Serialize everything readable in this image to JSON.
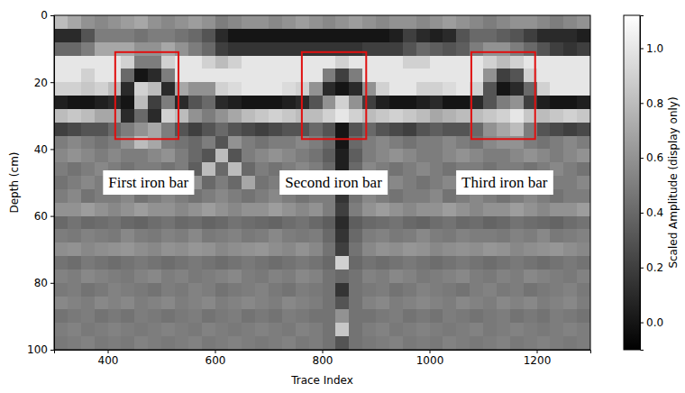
{
  "chart_data": {
    "type": "heatmap",
    "x_label": "Trace Index",
    "y_label": "Depth (cm)",
    "xlim": [
      300,
      1300
    ],
    "xticks": [
      400,
      600,
      800,
      1000,
      1200
    ],
    "ylim": [
      0,
      100
    ],
    "yticks": [
      0,
      20,
      40,
      60,
      80,
      100
    ],
    "grid": false,
    "x": [
      312.5,
      337.5,
      362.5,
      387.5,
      412.5,
      437.5,
      462.5,
      487.5,
      512.5,
      537.5,
      562.5,
      587.5,
      612.5,
      637.5,
      662.5,
      687.5,
      712.5,
      737.5,
      762.5,
      787.5,
      812.5,
      837.5,
      862.5,
      887.5,
      912.5,
      937.5,
      962.5,
      987.5,
      1012.5,
      1037.5,
      1062.5,
      1087.5,
      1112.5,
      1137.5,
      1162.5,
      1187.5,
      1212.5,
      1237.5,
      1262.5,
      1287.5
    ],
    "y": [
      2,
      6,
      10,
      14,
      18,
      22,
      26,
      30,
      34,
      38,
      42,
      46,
      50,
      54,
      58,
      62,
      66,
      70,
      74,
      78,
      82,
      86,
      90,
      94,
      98
    ],
    "cells": [
      [
        0.8,
        0.7,
        0.6,
        0.55,
        0.6,
        0.65,
        0.7,
        0.6,
        0.55,
        0.6,
        0.65,
        0.6,
        0.5,
        0.55,
        0.6,
        0.6,
        0.55,
        0.6,
        0.65,
        0.6,
        0.55,
        0.6,
        0.65,
        0.6,
        0.55,
        0.6,
        0.6,
        0.55,
        0.6,
        0.65,
        0.6,
        0.55,
        0.5,
        0.55,
        0.6,
        0.6,
        0.55,
        0.5,
        0.55,
        0.6
      ],
      [
        0.1,
        0.1,
        0.3,
        0.5,
        0.5,
        0.5,
        0.45,
        0.5,
        0.5,
        0.45,
        0.4,
        0.3,
        0.1,
        0,
        0,
        0,
        0,
        0,
        0,
        0,
        0,
        0,
        0,
        0,
        0,
        0.05,
        0.2,
        0.1,
        0.05,
        0.1,
        0.3,
        0.4,
        0.4,
        0.35,
        0.3,
        0.2,
        0.1,
        0.1,
        0.1,
        0.05
      ],
      [
        0.4,
        0.4,
        0.5,
        0.7,
        0.7,
        0.7,
        0.6,
        0.6,
        0.7,
        0.6,
        0.5,
        0.4,
        0.2,
        0.15,
        0.15,
        0.15,
        0.15,
        0.15,
        0.15,
        0.15,
        0.15,
        0.15,
        0.15,
        0.2,
        0.2,
        0.2,
        0.3,
        0.4,
        0.35,
        0.3,
        0.35,
        0.5,
        0.6,
        0.6,
        0.5,
        0.4,
        0.3,
        0.2,
        0.15,
        0.2
      ],
      [
        1,
        1,
        1,
        1,
        1,
        0.9,
        0.5,
        0.5,
        0.9,
        1,
        1,
        0.9,
        0.8,
        0.9,
        1,
        1,
        1,
        1,
        1,
        1,
        1,
        0.9,
        1,
        1,
        1,
        1,
        0.9,
        0.9,
        1,
        1,
        1,
        1,
        0.9,
        0.8,
        0.9,
        1,
        1,
        1,
        1,
        1
      ],
      [
        1,
        1,
        0.9,
        1,
        1,
        0.4,
        0,
        0.1,
        0.5,
        1,
        1,
        1,
        1,
        1,
        1,
        1,
        1,
        1,
        1,
        1,
        0.5,
        0.2,
        0.5,
        1,
        1,
        1,
        1,
        1,
        1,
        1,
        1,
        1,
        0.6,
        0.2,
        0.3,
        0.9,
        1,
        1,
        1,
        1
      ],
      [
        0.9,
        0.9,
        0.85,
        0.9,
        0.8,
        0.1,
        0.9,
        0.8,
        0.1,
        0.7,
        0.6,
        0.6,
        0.9,
        0.95,
        1,
        1,
        1,
        0.95,
        0.9,
        0.6,
        0.1,
        0,
        0.1,
        0.6,
        0.9,
        1,
        1,
        0.9,
        0.9,
        0.95,
        1,
        0.9,
        0.3,
        0,
        0.1,
        0.4,
        0.9,
        1,
        1,
        1
      ],
      [
        0.05,
        0,
        0,
        0.05,
        0.1,
        0,
        0.8,
        0.2,
        0.5,
        0.1,
        0.3,
        0.4,
        0.1,
        0.05,
        0,
        0,
        0,
        0.05,
        0.1,
        0.3,
        0.6,
        0.9,
        0.6,
        0.2,
        0.05,
        0,
        0,
        0.05,
        0.1,
        0,
        0,
        0.1,
        0.3,
        0.5,
        0.6,
        0.2,
        0.05,
        0,
        0,
        0.05
      ],
      [
        0.8,
        0.85,
        0.8,
        0.7,
        0.7,
        0.1,
        0.4,
        0.1,
        0.9,
        0.8,
        0.6,
        0.5,
        0.6,
        0.7,
        0.8,
        0.85,
        0.9,
        0.85,
        0.8,
        0.8,
        0.9,
        1,
        0.9,
        0.8,
        0.85,
        0.9,
        0.85,
        0.8,
        0.7,
        0.75,
        0.8,
        0.8,
        0.85,
        0.9,
        1,
        0.85,
        0.8,
        0.85,
        0.9,
        0.85
      ],
      [
        0.2,
        0.25,
        0.3,
        0.3,
        0.4,
        0.5,
        0.6,
        0.7,
        0.5,
        0.3,
        0.2,
        0.3,
        0.4,
        0.3,
        0.25,
        0.2,
        0.25,
        0.3,
        0.3,
        0.4,
        0.3,
        0,
        0.3,
        0.4,
        0.3,
        0.25,
        0.2,
        0.3,
        0.35,
        0.3,
        0.3,
        0.4,
        0.6,
        0.7,
        0.8,
        0.5,
        0.3,
        0.25,
        0.2,
        0.25
      ],
      [
        0.5,
        0.55,
        0.5,
        0.45,
        0.5,
        0.6,
        0.8,
        0.7,
        0.5,
        0.45,
        0.4,
        0.5,
        0.3,
        0.6,
        0.5,
        0.45,
        0.5,
        0.5,
        0.55,
        0.5,
        0.4,
        0,
        0.4,
        0.5,
        0.55,
        0.5,
        0.45,
        0.5,
        0.5,
        0.55,
        0.5,
        0.45,
        0.55,
        0.6,
        0.6,
        0.5,
        0.45,
        0.5,
        0.55,
        0.5
      ],
      [
        0.55,
        0.6,
        0.55,
        0.5,
        0.55,
        0.5,
        0.5,
        0.55,
        0.6,
        0.5,
        0.4,
        0.3,
        0.8,
        0.3,
        0.5,
        0.55,
        0.6,
        0.55,
        0.5,
        0.45,
        0.35,
        0.05,
        0.35,
        0.5,
        0.55,
        0.6,
        0.55,
        0.5,
        0.5,
        0.55,
        0.6,
        0.55,
        0.5,
        0.5,
        0.55,
        0.6,
        0.55,
        0.5,
        0.55,
        0.6
      ],
      [
        0.5,
        0.45,
        0.5,
        0.55,
        0.5,
        0.45,
        0.5,
        0.5,
        0.45,
        0.5,
        0.35,
        0.8,
        0.4,
        0.8,
        0.4,
        0.5,
        0.45,
        0.5,
        0.55,
        0.5,
        0.4,
        0.05,
        0.4,
        0.55,
        0.5,
        0.45,
        0.5,
        0.55,
        0.5,
        0.45,
        0.5,
        0.5,
        0.45,
        0.5,
        0.5,
        0.45,
        0.5,
        0.55,
        0.5,
        0.45
      ],
      [
        0.45,
        0.5,
        0.55,
        0.5,
        0.45,
        0.5,
        0.55,
        0.5,
        0.5,
        0.45,
        0.6,
        0.4,
        0.5,
        0.4,
        0.7,
        0.45,
        0.5,
        0.5,
        0.45,
        0.5,
        0.45,
        0.1,
        0.45,
        0.5,
        0.5,
        0.55,
        0.5,
        0.45,
        0.5,
        0.55,
        0.5,
        0.45,
        0.5,
        0.55,
        0.5,
        0.5,
        0.45,
        0.5,
        0.5,
        0.55
      ],
      [
        0.5,
        0.55,
        0.45,
        0.5,
        0.5,
        0.55,
        0.45,
        0.5,
        0.55,
        0.5,
        0.45,
        0.5,
        0.55,
        0.5,
        0.45,
        0.5,
        0.55,
        0.5,
        0.45,
        0.5,
        0.5,
        0.15,
        0.45,
        0.55,
        0.5,
        0.45,
        0.5,
        0.5,
        0.55,
        0.45,
        0.5,
        0.55,
        0.5,
        0.45,
        0.5,
        0.55,
        0.5,
        0.45,
        0.5,
        0.5
      ],
      [
        0.6,
        0.6,
        0.65,
        0.6,
        0.55,
        0.6,
        0.65,
        0.6,
        0.6,
        0.55,
        0.6,
        0.65,
        0.6,
        0.55,
        0.6,
        0.6,
        0.65,
        0.6,
        0.55,
        0.6,
        0.5,
        0.2,
        0.5,
        0.6,
        0.65,
        0.6,
        0.55,
        0.6,
        0.6,
        0.65,
        0.6,
        0.55,
        0.6,
        0.6,
        0.65,
        0.6,
        0.55,
        0.6,
        0.6,
        0.65
      ],
      [
        0.4,
        0.45,
        0.4,
        0.42,
        0.45,
        0.4,
        0.38,
        0.42,
        0.45,
        0.4,
        0.42,
        0.38,
        0.4,
        0.45,
        0.42,
        0.4,
        0.38,
        0.42,
        0.45,
        0.4,
        0.35,
        0.1,
        0.35,
        0.4,
        0.42,
        0.45,
        0.4,
        0.38,
        0.42,
        0.45,
        0.4,
        0.42,
        0.38,
        0.4,
        0.45,
        0.42,
        0.4,
        0.38,
        0.42,
        0.45
      ],
      [
        0.5,
        0.48,
        0.52,
        0.5,
        0.48,
        0.55,
        0.5,
        0.48,
        0.52,
        0.5,
        0.55,
        0.48,
        0.5,
        0.52,
        0.48,
        0.5,
        0.55,
        0.5,
        0.48,
        0.5,
        0.4,
        0.15,
        0.4,
        0.5,
        0.52,
        0.48,
        0.5,
        0.55,
        0.5,
        0.48,
        0.52,
        0.5,
        0.5,
        0.48,
        0.52,
        0.5,
        0.55,
        0.48,
        0.5,
        0.52
      ],
      [
        0.58,
        0.6,
        0.55,
        0.58,
        0.6,
        0.62,
        0.58,
        0.55,
        0.6,
        0.58,
        0.62,
        0.6,
        0.55,
        0.58,
        0.6,
        0.62,
        0.58,
        0.55,
        0.6,
        0.55,
        0.45,
        0.2,
        0.45,
        0.55,
        0.6,
        0.58,
        0.62,
        0.6,
        0.55,
        0.58,
        0.6,
        0.58,
        0.62,
        0.6,
        0.55,
        0.58,
        0.6,
        0.62,
        0.58,
        0.55
      ],
      [
        0.45,
        0.42,
        0.48,
        0.45,
        0.42,
        0.45,
        0.48,
        0.45,
        0.42,
        0.45,
        0.48,
        0.45,
        0.42,
        0.45,
        0.48,
        0.45,
        0.42,
        0.45,
        0.48,
        0.45,
        0.4,
        0.9,
        0.4,
        0.45,
        0.42,
        0.45,
        0.48,
        0.45,
        0.42,
        0.45,
        0.48,
        0.45,
        0.42,
        0.45,
        0.48,
        0.45,
        0.42,
        0.45,
        0.48,
        0.45
      ],
      [
        0.52,
        0.5,
        0.55,
        0.52,
        0.5,
        0.48,
        0.52,
        0.55,
        0.5,
        0.52,
        0.48,
        0.5,
        0.52,
        0.55,
        0.5,
        0.48,
        0.52,
        0.5,
        0.55,
        0.52,
        0.45,
        0.4,
        0.45,
        0.52,
        0.5,
        0.55,
        0.52,
        0.48,
        0.5,
        0.52,
        0.55,
        0.5,
        0.48,
        0.52,
        0.5,
        0.55,
        0.52,
        0.5,
        0.48,
        0.52
      ],
      [
        0.48,
        0.5,
        0.45,
        0.48,
        0.52,
        0.5,
        0.48,
        0.45,
        0.5,
        0.48,
        0.52,
        0.5,
        0.45,
        0.48,
        0.5,
        0.52,
        0.48,
        0.45,
        0.5,
        0.48,
        0.45,
        0.15,
        0.45,
        0.48,
        0.5,
        0.45,
        0.48,
        0.52,
        0.5,
        0.48,
        0.45,
        0.5,
        0.52,
        0.48,
        0.5,
        0.45,
        0.48,
        0.5,
        0.52,
        0.48
      ],
      [
        0.55,
        0.52,
        0.5,
        0.55,
        0.52,
        0.55,
        0.5,
        0.52,
        0.55,
        0.5,
        0.52,
        0.55,
        0.5,
        0.52,
        0.55,
        0.52,
        0.5,
        0.55,
        0.52,
        0.5,
        0.45,
        0.3,
        0.45,
        0.52,
        0.55,
        0.5,
        0.52,
        0.55,
        0.52,
        0.5,
        0.55,
        0.52,
        0.5,
        0.55,
        0.52,
        0.55,
        0.5,
        0.52,
        0.55,
        0.5
      ],
      [
        0.45,
        0.48,
        0.5,
        0.45,
        0.48,
        0.45,
        0.5,
        0.48,
        0.45,
        0.48,
        0.5,
        0.45,
        0.48,
        0.5,
        0.45,
        0.48,
        0.45,
        0.5,
        0.48,
        0.45,
        0.45,
        0.6,
        0.45,
        0.45,
        0.48,
        0.5,
        0.45,
        0.48,
        0.45,
        0.5,
        0.48,
        0.45,
        0.48,
        0.5,
        0.45,
        0.48,
        0.45,
        0.5,
        0.48,
        0.45
      ],
      [
        0.5,
        0.52,
        0.48,
        0.5,
        0.52,
        0.5,
        0.48,
        0.5,
        0.52,
        0.5,
        0.48,
        0.52,
        0.5,
        0.48,
        0.5,
        0.52,
        0.5,
        0.48,
        0.52,
        0.5,
        0.45,
        0.85,
        0.45,
        0.5,
        0.52,
        0.48,
        0.5,
        0.52,
        0.5,
        0.48,
        0.5,
        0.52,
        0.48,
        0.5,
        0.52,
        0.5,
        0.48,
        0.5,
        0.52,
        0.5
      ],
      [
        0.48,
        0.5,
        0.52,
        0.48,
        0.5,
        0.48,
        0.52,
        0.5,
        0.48,
        0.5,
        0.52,
        0.48,
        0.5,
        0.52,
        0.5,
        0.48,
        0.5,
        0.52,
        0.48,
        0.5,
        0.45,
        0.3,
        0.45,
        0.48,
        0.5,
        0.52,
        0.48,
        0.5,
        0.48,
        0.52,
        0.5,
        0.48,
        0.5,
        0.52,
        0.48,
        0.5,
        0.52,
        0.5,
        0.48,
        0.5
      ]
    ],
    "colorbar": {
      "label": "Scaled Amplitude (display only)",
      "range": [
        -0.1,
        1.12
      ],
      "ticks": [
        {
          "value": 0,
          "label": "0.0"
        },
        0.2,
        0.4,
        0.6,
        0.8,
        {
          "value": 1,
          "label": "1.0"
        }
      ]
    },
    "annotations": [
      {
        "text": "First iron bar",
        "box_x": [
          414,
          532
        ],
        "box_y": [
          11,
          37
        ],
        "x": 476,
        "y": 50
      },
      {
        "text": "Second iron bar",
        "box_x": [
          762,
          882
        ],
        "box_y": [
          11,
          37
        ],
        "x": 821,
        "y": 50
      },
      {
        "text": "Third iron bar",
        "box_x": [
          1078,
          1197
        ],
        "box_y": [
          11,
          37
        ],
        "x": 1140,
        "y": 50
      }
    ]
  }
}
